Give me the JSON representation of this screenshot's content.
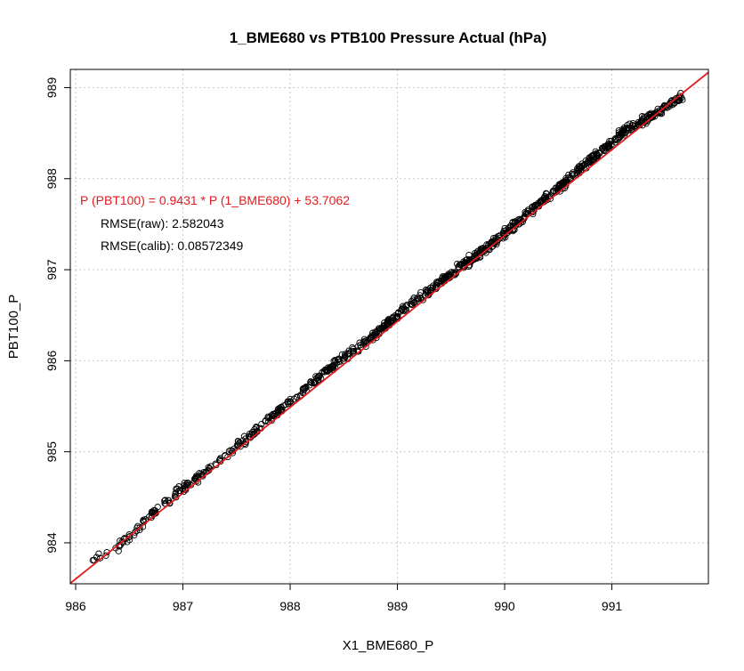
{
  "chart_data": {
    "type": "scatter",
    "title": "1_BME680 vs PTB100 Pressure Actual (hPa)",
    "xlabel": "X1_BME680_P",
    "ylabel": "PBT100_P",
    "xlim": [
      985.95,
      991.9
    ],
    "ylim": [
      983.55,
      989.2
    ],
    "x_ticks": [
      986,
      987,
      988,
      989,
      990,
      991
    ],
    "y_ticks": [
      984,
      985,
      986,
      987,
      988,
      989
    ],
    "x_tick_labels": [
      "986",
      "987",
      "988",
      "989",
      "990",
      "991"
    ],
    "y_tick_labels": [
      "984",
      "985",
      "986",
      "987",
      "988",
      "989"
    ],
    "grid": true,
    "fit_line": {
      "slope": 0.9431,
      "intercept": 53.7062,
      "color": "#e31a1c"
    },
    "point_style": {
      "marker": "open-circle",
      "color": "#000000"
    },
    "scatter_band": [
      {
        "x": 986.15,
        "y": 983.8
      },
      {
        "x": 986.4,
        "y": 983.95
      },
      {
        "x": 986.7,
        "y": 984.3
      },
      {
        "x": 987.0,
        "y": 984.6
      },
      {
        "x": 987.4,
        "y": 984.95
      },
      {
        "x": 988.0,
        "y": 985.55
      },
      {
        "x": 988.4,
        "y": 985.95
      },
      {
        "x": 988.7,
        "y": 986.2
      },
      {
        "x": 989.1,
        "y": 986.6
      },
      {
        "x": 989.5,
        "y": 986.95
      },
      {
        "x": 989.9,
        "y": 987.3
      },
      {
        "x": 990.3,
        "y": 987.7
      },
      {
        "x": 990.7,
        "y": 988.1
      },
      {
        "x": 991.1,
        "y": 988.5
      },
      {
        "x": 991.65,
        "y": 988.9
      }
    ],
    "annotations": [
      {
        "text": "P (PBT100) = 0.9431  * P (1_BME680)  + 53.7062",
        "color": "#e31a1c"
      },
      {
        "text": "RMSE(raw): 2.582043",
        "color": "#000000"
      },
      {
        "text": "RMSE(calib): 0.08572349",
        "color": "#000000"
      }
    ]
  }
}
